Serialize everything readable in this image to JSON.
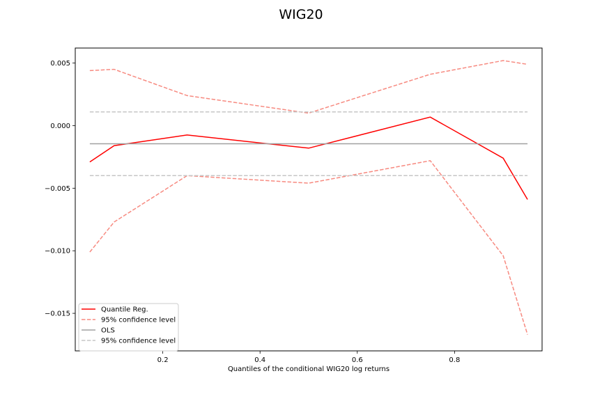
{
  "chart_data": {
    "type": "line",
    "title": "WIG20",
    "xlabel": "Quantiles of the conditional WIG20 log returns",
    "ylabel": "",
    "xlim": [
      0.02,
      0.98
    ],
    "ylim": [
      -0.018,
      0.0062
    ],
    "xticks": [
      0.2,
      0.4,
      0.6,
      0.8
    ],
    "xtick_labels": [
      "0.2",
      "0.4",
      "0.6",
      "0.8"
    ],
    "yticks": [
      0.005,
      0.0,
      -0.005,
      -0.01,
      -0.015
    ],
    "ytick_labels": [
      "0.005",
      "0.000",
      "−0.005",
      "−0.010",
      "−0.015"
    ],
    "grid": false,
    "legend_position": "lower-left",
    "series": [
      {
        "name": "Quantile Reg.",
        "color": "#ff0000",
        "style": "solid",
        "x": [
          0.05,
          0.1,
          0.25,
          0.5,
          0.75,
          0.9,
          0.95
        ],
        "y": [
          -0.0029,
          -0.0016,
          -0.00075,
          -0.0018,
          0.00068,
          -0.0026,
          -0.0059
        ]
      },
      {
        "name": "95% confidence level",
        "color": "#f78a80",
        "style": "dashed",
        "x": [
          0.05,
          0.1,
          0.25,
          0.5,
          0.75,
          0.9,
          0.95
        ],
        "y": [
          0.0044,
          0.0045,
          0.0024,
          0.001,
          0.0041,
          0.0052,
          0.0049
        ]
      },
      {
        "name": "",
        "color": "#f78a80",
        "style": "dashed",
        "x": [
          0.05,
          0.1,
          0.25,
          0.5,
          0.75,
          0.9,
          0.95
        ],
        "y": [
          -0.0101,
          -0.0077,
          -0.004,
          -0.0046,
          -0.0028,
          -0.0104,
          -0.0167
        ]
      },
      {
        "name": "OLS",
        "color": "#a0a0a0",
        "style": "solid",
        "x": [
          0.05,
          0.95
        ],
        "y": [
          -0.00145,
          -0.00145
        ]
      },
      {
        "name": "95% confidence level",
        "color": "#c6c6c6",
        "style": "dashed",
        "x": [
          0.05,
          0.95
        ],
        "y": [
          0.0011,
          0.0011
        ]
      },
      {
        "name": "",
        "color": "#c6c6c6",
        "style": "dashed",
        "x": [
          0.05,
          0.95
        ],
        "y": [
          -0.004,
          -0.004
        ]
      }
    ],
    "legend": [
      {
        "label": "Quantile Reg.",
        "color": "#ff0000",
        "style": "solid"
      },
      {
        "label": "95% confidence level",
        "color": "#f78a80",
        "style": "dashed"
      },
      {
        "label": "OLS",
        "color": "#a0a0a0",
        "style": "solid"
      },
      {
        "label": "95% confidence level",
        "color": "#c6c6c6",
        "style": "dashed"
      }
    ]
  }
}
